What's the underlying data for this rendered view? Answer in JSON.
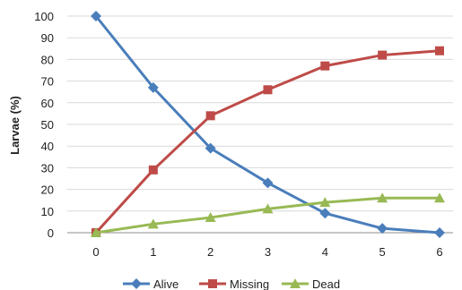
{
  "chart_data": {
    "type": "line",
    "title": "",
    "xlabel": "",
    "ylabel": "Larvae (%)",
    "x": [
      0,
      1,
      2,
      3,
      4,
      5,
      6
    ],
    "ylim": [
      0,
      100
    ],
    "yticks": [
      0,
      10,
      20,
      30,
      40,
      50,
      60,
      70,
      80,
      90,
      100
    ],
    "grid": "horizontal",
    "legend_position": "bottom",
    "series": [
      {
        "name": "Alive",
        "color": "#4a7ebb",
        "marker": "diamond",
        "values": [
          100,
          67,
          39,
          23,
          9,
          2,
          0
        ]
      },
      {
        "name": "Missing",
        "color": "#be4b48",
        "marker": "square",
        "values": [
          0,
          29,
          54,
          66,
          77,
          82,
          84
        ]
      },
      {
        "name": "Dead",
        "color": "#98b954",
        "marker": "triangle",
        "values": [
          0,
          4,
          7,
          11,
          14,
          16,
          16
        ]
      }
    ]
  }
}
